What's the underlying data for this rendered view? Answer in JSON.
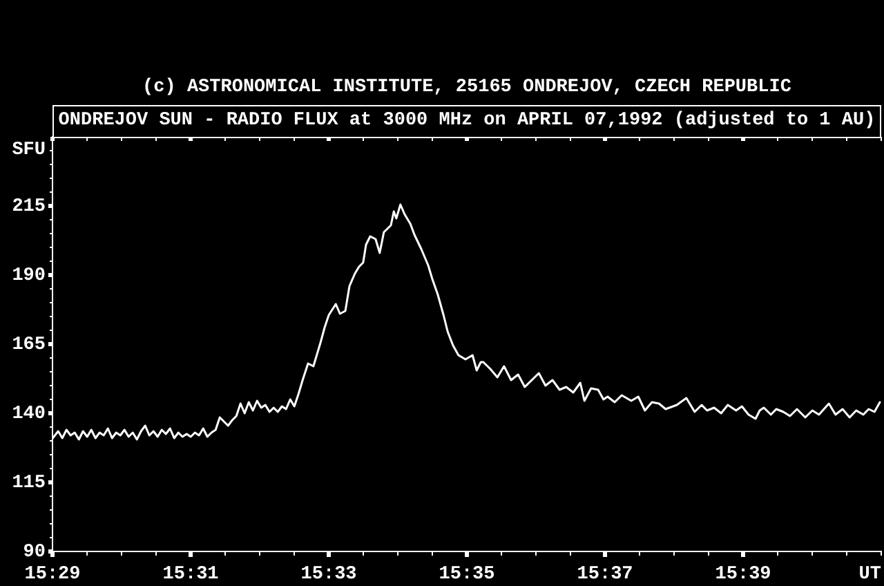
{
  "chart_data": {
    "type": "line",
    "title": "ONDREJOV SUN - RADIO FLUX at 3000 MHz on APRIL 07,1992 (adjusted to 1 AU)",
    "annotations": [
      "(c) ASTRONOMICAL INSTITUTE, 25165 ONDREJOV, CZECH REPUBLIC"
    ],
    "xlabel": "UT",
    "ylabel": "SFU",
    "x": [
      15.4834,
      15.4847,
      15.4857,
      15.4867,
      15.4877,
      15.4887,
      15.4897,
      15.4907,
      15.4917,
      15.4927,
      15.4937,
      15.4947,
      15.4957,
      15.4967,
      15.4977,
      15.4987,
      15.4997,
      15.5007,
      15.5017,
      15.5027,
      15.5037,
      15.5047,
      15.5057,
      15.5067,
      15.5077,
      15.5087,
      15.5097,
      15.5107,
      15.5117,
      15.5127,
      15.5137,
      15.5147,
      15.5157,
      15.5167,
      15.5177,
      15.5187,
      15.5197,
      15.5207,
      15.5217,
      15.5227,
      15.5237,
      15.5247,
      15.5257,
      15.5267,
      15.5277,
      15.5287,
      15.5297,
      15.5307,
      15.5317,
      15.5327,
      15.5337,
      15.5347,
      15.5357,
      15.5367,
      15.5377,
      15.5387,
      15.5397,
      15.5407,
      15.5417,
      15.5427,
      15.5437,
      15.545,
      15.5463,
      15.548,
      15.549,
      15.55,
      15.5517,
      15.5527,
      15.554,
      15.555,
      15.5563,
      15.5573,
      15.5583,
      15.559,
      15.56,
      15.5613,
      15.5623,
      15.5633,
      15.565,
      15.5657,
      15.5663,
      15.5673,
      15.5683,
      15.5697,
      15.5707,
      15.5723,
      15.574,
      15.575,
      15.5763,
      15.5777,
      15.5787,
      15.58,
      15.5813,
      15.583,
      15.5847,
      15.5857,
      15.5867,
      15.5873,
      15.589,
      15.5907,
      15.5923,
      15.594,
      15.5957,
      15.5973,
      15.599,
      15.6007,
      15.6023,
      15.604,
      15.6057,
      15.6073,
      15.609,
      15.6107,
      15.6117,
      15.6133,
      15.615,
      15.6163,
      15.6173,
      15.619,
      15.6207,
      15.623,
      15.6247,
      15.6263,
      15.628,
      15.6297,
      15.6313,
      15.634,
      15.6363,
      15.6383,
      15.64,
      15.6413,
      15.643,
      15.6447,
      15.6463,
      15.6483,
      15.6497,
      15.6513,
      15.653,
      15.654,
      15.655,
      15.6567,
      15.658,
      15.6597,
      15.6613,
      15.663,
      15.665,
      15.6667,
      15.6683,
      15.6707,
      15.6723,
      15.674,
      15.6757,
      15.6773,
      15.679,
      15.6803,
      15.6817,
      15.683
    ],
    "series": [
      {
        "color": "#ffffff",
        "values": [
          131,
          133.5,
          131,
          134,
          132,
          133,
          130.5,
          133.5,
          131.5,
          134,
          131,
          133,
          132,
          134.5,
          131,
          133,
          132,
          134,
          131.5,
          133,
          130.5,
          133.5,
          135.5,
          132,
          133.5,
          131.5,
          134,
          132.5,
          134.5,
          131,
          133,
          131.5,
          132.5,
          131.5,
          133,
          132,
          134.5,
          131.5,
          133,
          134,
          138.5,
          137,
          135.5,
          137.5,
          139,
          143.5,
          140,
          144,
          141,
          144.5,
          142,
          143,
          140.5,
          142,
          140.5,
          142.5,
          141.5,
          145,
          142.5,
          147,
          152,
          158,
          157,
          165.5,
          171,
          175.5,
          179.5,
          176,
          177,
          186,
          190.5,
          193,
          194.5,
          201,
          204,
          203,
          198,
          205.5,
          208,
          213,
          210.5,
          215.5,
          212,
          208.5,
          204.5,
          199.5,
          193.5,
          188.5,
          183,
          175.5,
          169.5,
          164.5,
          161,
          159.5,
          161,
          155.5,
          158.5,
          158.5,
          156,
          153,
          157,
          152,
          154,
          149.5,
          152,
          154.5,
          150,
          152,
          148.5,
          149.5,
          147.5,
          151,
          144.5,
          149,
          148.5,
          145,
          146,
          144,
          146.5,
          144.5,
          146,
          141,
          144,
          143.5,
          141.5,
          143,
          145.5,
          140.5,
          143,
          141,
          142,
          140,
          143,
          141,
          142.5,
          139.5,
          138,
          141,
          142,
          139.5,
          141.5,
          140.5,
          139,
          141.5,
          138.5,
          141,
          139.5,
          143.5,
          139.5,
          141.5,
          138.5,
          141,
          139.5,
          141.5,
          140.5,
          144
        ]
      }
    ],
    "xlim": [
      15.48333,
      15.68333
    ],
    "xticks": [
      {
        "value": 15.48333,
        "label": "15:29"
      },
      {
        "value": 15.49167,
        "label": null
      },
      {
        "value": 15.5,
        "label": null
      },
      {
        "value": 15.50833,
        "label": null
      },
      {
        "value": 15.51667,
        "label": "15:31"
      },
      {
        "value": 15.525,
        "label": null
      },
      {
        "value": 15.53333,
        "label": null
      },
      {
        "value": 15.54167,
        "label": null
      },
      {
        "value": 15.55,
        "label": "15:33"
      },
      {
        "value": 15.55833,
        "label": null
      },
      {
        "value": 15.56667,
        "label": null
      },
      {
        "value": 15.575,
        "label": null
      },
      {
        "value": 15.58333,
        "label": "15:35"
      },
      {
        "value": 15.59167,
        "label": null
      },
      {
        "value": 15.6,
        "label": null
      },
      {
        "value": 15.60833,
        "label": null
      },
      {
        "value": 15.61667,
        "label": "15:37"
      },
      {
        "value": 15.625,
        "label": null
      },
      {
        "value": 15.63333,
        "label": null
      },
      {
        "value": 15.64167,
        "label": null
      },
      {
        "value": 15.65,
        "label": "15:39"
      },
      {
        "value": 15.65833,
        "label": null
      },
      {
        "value": 15.66667,
        "label": null
      },
      {
        "value": 15.675,
        "label": null
      },
      {
        "value": 15.68333,
        "label": null
      }
    ],
    "ylim": [
      90,
      240
    ],
    "yticks": [
      90,
      {
        "value": 95,
        "label": null
      },
      {
        "value": 100,
        "label": null
      },
      {
        "value": 105,
        "label": null
      },
      {
        "value": 110,
        "label": null
      },
      115,
      {
        "value": 120,
        "label": null
      },
      {
        "value": 125,
        "label": null
      },
      {
        "value": 130,
        "label": null
      },
      {
        "value": 135,
        "label": null
      },
      140,
      {
        "value": 145,
        "label": null
      },
      {
        "value": 150,
        "label": null
      },
      {
        "value": 155,
        "label": null
      },
      {
        "value": 160,
        "label": null
      },
      165,
      {
        "value": 170,
        "label": null
      },
      {
        "value": 175,
        "label": null
      },
      {
        "value": 180,
        "label": null
      },
      {
        "value": 185,
        "label": null
      },
      190,
      {
        "value": 195,
        "label": null
      },
      {
        "value": 200,
        "label": null
      },
      {
        "value": 205,
        "label": null
      },
      {
        "value": 210,
        "label": null
      },
      215,
      {
        "value": 220,
        "label": null
      },
      {
        "value": 225,
        "label": null
      },
      {
        "value": 230,
        "label": null
      },
      {
        "value": 235,
        "label": null
      }
    ],
    "marker": "none",
    "line_style": "solid"
  }
}
